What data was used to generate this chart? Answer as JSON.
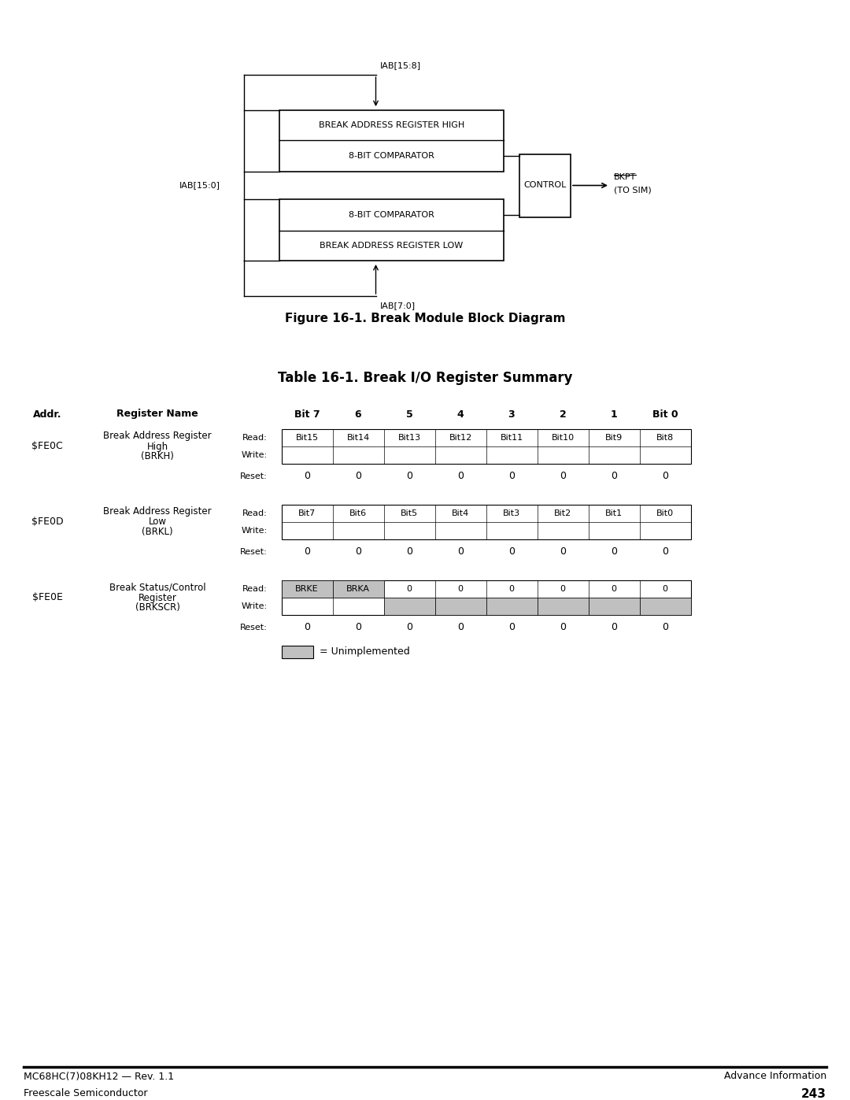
{
  "fig_title": "Figure 16-1. Break Module Block Diagram",
  "table_title": "Table 16-1. Break I/O Register Summary",
  "page_footer_left": "MC68HC(7)08KH12 — Rev. 1.1",
  "page_footer_right": "Advance Information",
  "page_footer_bottom_left": "Freescale Semiconductor",
  "page_footer_bottom_right": "243",
  "bg_color": "#ffffff",
  "block_diagram": {
    "iab_158_label": "IAB[15:8]",
    "iab_150_label": "IAB[15:0]",
    "iab_70_label": "IAB[7:0]",
    "bar_high_label": "BREAK ADDRESS REGISTER HIGH",
    "comparator_high_label": "8-BIT COMPARATOR",
    "comparator_low_label": "8-BIT COMPARATOR",
    "bar_low_label": "BREAK ADDRESS REGISTER LOW",
    "control_label": "CONTROL",
    "bkpt_label": "BKPT",
    "tosim_label": "(TO SIM)"
  },
  "col_labels": [
    "Bit 7",
    "6",
    "5",
    "4",
    "3",
    "2",
    "1",
    "Bit 0"
  ],
  "registers": [
    {
      "addr": "$FE0C",
      "name": "Break Address Register\nHigh\n(BRKH)",
      "read_vals": [
        "Bit15",
        "Bit14",
        "Bit13",
        "Bit12",
        "Bit11",
        "Bit10",
        "Bit9",
        "Bit8"
      ],
      "write_vals": [
        "",
        "",
        "",
        "",
        "",
        "",
        "",
        ""
      ],
      "reset_vals": [
        "0",
        "0",
        "0",
        "0",
        "0",
        "0",
        "0",
        "0"
      ],
      "gray_cells_read": [],
      "gray_cells_write": []
    },
    {
      "addr": "$FE0D",
      "name": "Break Address Register\nLow\n(BRKL)",
      "read_vals": [
        "Bit7",
        "Bit6",
        "Bit5",
        "Bit4",
        "Bit3",
        "Bit2",
        "Bit1",
        "Bit0"
      ],
      "write_vals": [
        "",
        "",
        "",
        "",
        "",
        "",
        "",
        ""
      ],
      "reset_vals": [
        "0",
        "0",
        "0",
        "0",
        "0",
        "0",
        "0",
        "0"
      ],
      "gray_cells_read": [],
      "gray_cells_write": []
    },
    {
      "addr": "$FE0E",
      "name": "Break Status/Control\nRegister\n(BRKSCR)",
      "read_vals": [
        "BRKE",
        "BRKA",
        "0",
        "0",
        "0",
        "0",
        "0",
        "0"
      ],
      "write_vals": [
        "",
        "",
        "",
        "",
        "",
        "",
        "",
        ""
      ],
      "reset_vals": [
        "0",
        "0",
        "0",
        "0",
        "0",
        "0",
        "0",
        "0"
      ],
      "gray_cells_read": [
        0,
        1
      ],
      "gray_cells_write": [
        2,
        3,
        4,
        5,
        6,
        7
      ]
    }
  ],
  "unimplemented_color": "#c0c0c0",
  "unimplemented_label": "= Unimplemented"
}
